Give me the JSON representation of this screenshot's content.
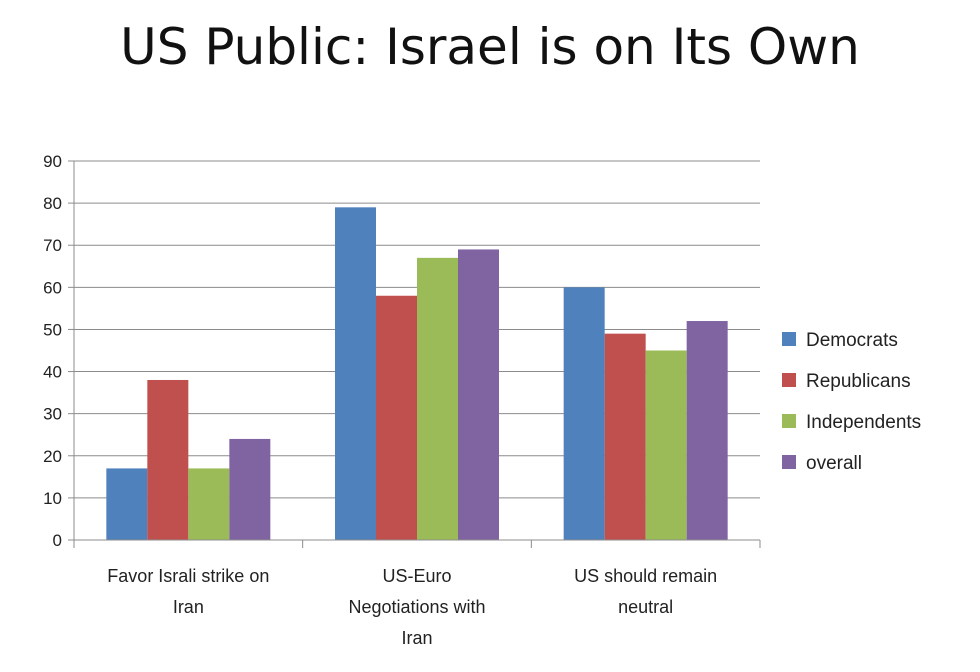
{
  "title": "US Public: Israel is on Its Own",
  "chart_data": {
    "type": "bar",
    "title": "US Public: Israel is on Its Own",
    "categories": [
      [
        "Favor Israli strike on",
        "Iran"
      ],
      [
        "US-Euro",
        "Negotiations with",
        "Iran"
      ],
      [
        "US should remain",
        "neutral"
      ]
    ],
    "series": [
      {
        "name": "Democrats",
        "color": "#4F81BD",
        "values": [
          17,
          79,
          60
        ]
      },
      {
        "name": "Republicans",
        "color": "#C0504D",
        "values": [
          38,
          58,
          49
        ]
      },
      {
        "name": "Independents",
        "color": "#9BBB59",
        "values": [
          17,
          67,
          45
        ]
      },
      {
        "name": "overall",
        "color": "#8064A2",
        "values": [
          24,
          69,
          52
        ]
      }
    ],
    "ylim": [
      0,
      90
    ],
    "yticks": [
      0,
      10,
      20,
      30,
      40,
      50,
      60,
      70,
      80,
      90
    ],
    "grid": true,
    "legend": "right"
  }
}
